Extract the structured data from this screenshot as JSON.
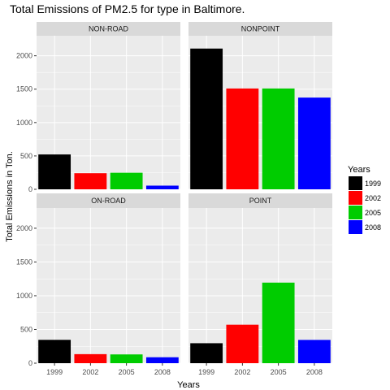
{
  "chart_data": {
    "type": "bar",
    "title": "Total Emissions of PM2.5 for type in Baltimore.",
    "xlabel": "Years",
    "ylabel": "Total Emissions in Ton.",
    "categories": [
      "1999",
      "2002",
      "2005",
      "2008"
    ],
    "ylim": [
      0,
      2300
    ],
    "yticks": [
      0,
      500,
      1000,
      1500,
      2000
    ],
    "grid": true,
    "legend": {
      "title": "Years",
      "placement": "right",
      "entries": [
        "1999",
        "2002",
        "2005",
        "2008"
      ]
    },
    "colors": [
      "#000000",
      "#ff0000",
      "#00cc00",
      "#0000ff"
    ],
    "panels": [
      {
        "name": "NON-ROAD",
        "values": [
          522,
          241,
          248,
          55
        ]
      },
      {
        "name": "NONPOINT",
        "values": [
          2108,
          1510,
          1510,
          1374
        ]
      },
      {
        "name": "ON-ROAD",
        "values": [
          346,
          134,
          130,
          88
        ]
      },
      {
        "name": "POINT",
        "values": [
          296,
          570,
          1194,
          345
        ]
      }
    ]
  }
}
